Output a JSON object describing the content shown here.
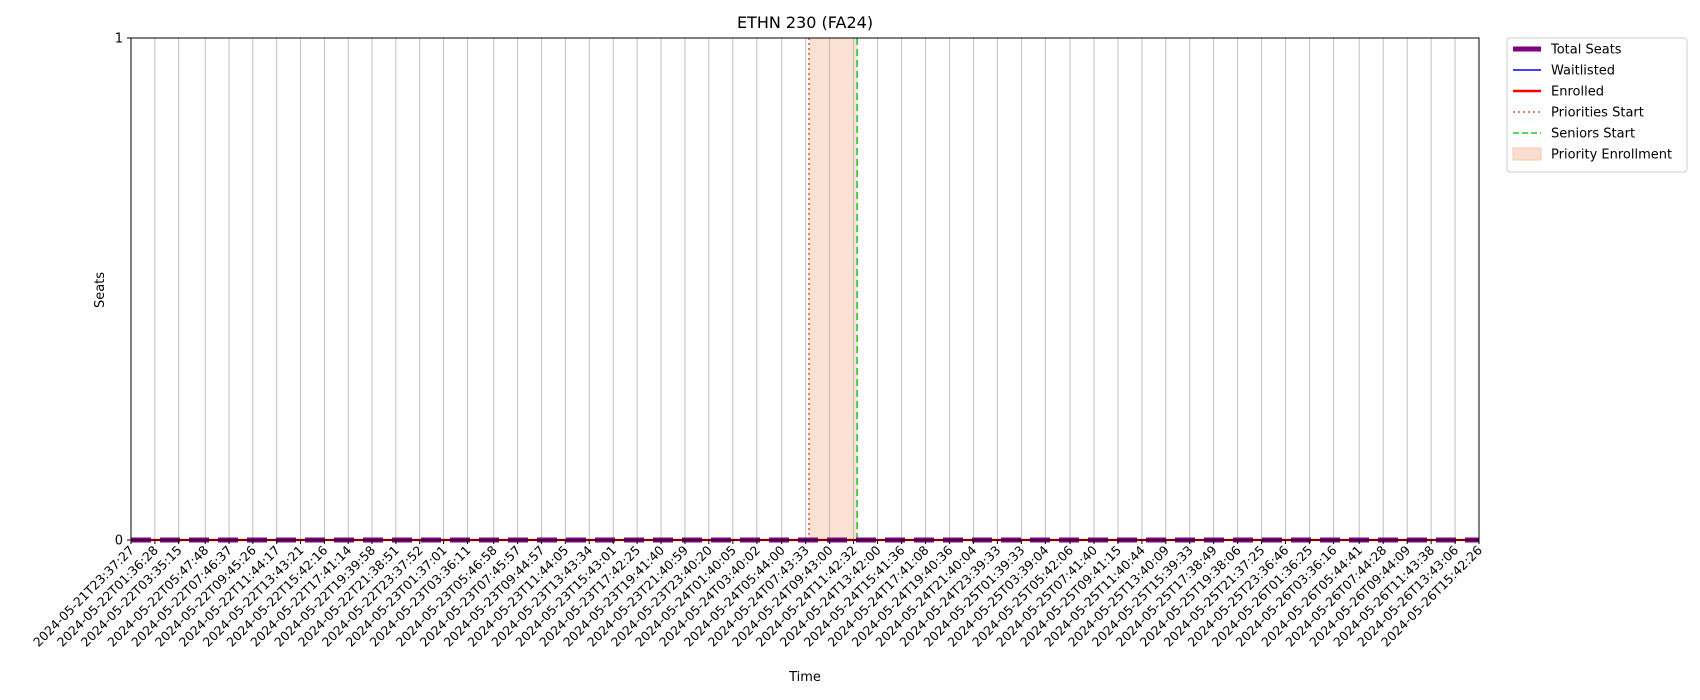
{
  "chart_data": {
    "type": "line",
    "title": "ETHN 230 (FA24)",
    "xlabel": "Time",
    "ylabel": "Seats",
    "ylim": [
      0,
      1
    ],
    "yticks": [
      "0",
      "1"
    ],
    "grid": "vertical",
    "legend_position": "outside-top-right",
    "x": [
      "2024-05-21T23:37:27",
      "2024-05-22T01:36:28",
      "2024-05-22T03:35:15",
      "2024-05-22T05:47:48",
      "2024-05-22T07:46:37",
      "2024-05-22T09:45:26",
      "2024-05-22T11:44:17",
      "2024-05-22T13:43:21",
      "2024-05-22T15:42:16",
      "2024-05-22T17:41:14",
      "2024-05-22T19:39:58",
      "2024-05-22T21:38:51",
      "2024-05-22T23:37:52",
      "2024-05-23T01:37:01",
      "2024-05-23T03:36:11",
      "2024-05-23T05:46:58",
      "2024-05-23T07:45:57",
      "2024-05-23T09:44:57",
      "2024-05-23T11:44:05",
      "2024-05-23T13:43:34",
      "2024-05-23T15:43:01",
      "2024-05-23T17:42:25",
      "2024-05-23T19:41:40",
      "2024-05-23T21:40:59",
      "2024-05-23T23:40:20",
      "2024-05-24T01:40:05",
      "2024-05-24T03:40:02",
      "2024-05-24T05:44:00",
      "2024-05-24T07:43:33",
      "2024-05-24T09:43:00",
      "2024-05-24T11:42:32",
      "2024-05-24T13:42:00",
      "2024-05-24T15:41:36",
      "2024-05-24T17:41:08",
      "2024-05-24T19:40:36",
      "2024-05-24T21:40:04",
      "2024-05-24T23:39:33",
      "2024-05-25T01:39:33",
      "2024-05-25T03:39:04",
      "2024-05-25T05:42:06",
      "2024-05-25T07:41:40",
      "2024-05-25T09:41:15",
      "2024-05-25T11:40:44",
      "2024-05-25T13:40:09",
      "2024-05-25T15:39:33",
      "2024-05-25T17:38:49",
      "2024-05-25T19:38:06",
      "2024-05-25T21:37:25",
      "2024-05-25T23:36:46",
      "2024-05-26T01:36:25",
      "2024-05-26T03:36:16",
      "2024-05-26T05:44:41",
      "2024-05-26T07:44:28",
      "2024-05-26T09:44:09",
      "2024-05-26T11:43:38",
      "2024-05-26T13:43:06",
      "2024-05-26T15:42:26"
    ],
    "series": [
      {
        "name": "Total Seats",
        "color": "#800080",
        "style": "dashed-thick",
        "values": [
          0,
          0,
          0,
          0,
          0,
          0,
          0,
          0,
          0,
          0,
          0,
          0,
          0,
          0,
          0,
          0,
          0,
          0,
          0,
          0,
          0,
          0,
          0,
          0,
          0,
          0,
          0,
          0,
          0,
          0,
          0,
          0,
          0,
          0,
          0,
          0,
          0,
          0,
          0,
          0,
          0,
          0,
          0,
          0,
          0,
          0,
          0,
          0,
          0,
          0,
          0,
          0,
          0,
          0,
          0,
          0,
          0
        ]
      },
      {
        "name": "Waitlisted",
        "color": "#0000ff",
        "style": "solid",
        "values": [
          0,
          0,
          0,
          0,
          0,
          0,
          0,
          0,
          0,
          0,
          0,
          0,
          0,
          0,
          0,
          0,
          0,
          0,
          0,
          0,
          0,
          0,
          0,
          0,
          0,
          0,
          0,
          0,
          0,
          0,
          0,
          0,
          0,
          0,
          0,
          0,
          0,
          0,
          0,
          0,
          0,
          0,
          0,
          0,
          0,
          0,
          0,
          0,
          0,
          0,
          0,
          0,
          0,
          0,
          0,
          0,
          0
        ]
      },
      {
        "name": "Enrolled",
        "color": "#ff0000",
        "style": "solid-thick",
        "values": [
          0,
          0,
          0,
          0,
          0,
          0,
          0,
          0,
          0,
          0,
          0,
          0,
          0,
          0,
          0,
          0,
          0,
          0,
          0,
          0,
          0,
          0,
          0,
          0,
          0,
          0,
          0,
          0,
          0,
          0,
          0,
          0,
          0,
          0,
          0,
          0,
          0,
          0,
          0,
          0,
          0,
          0,
          0,
          0,
          0,
          0,
          0,
          0,
          0,
          0,
          0,
          0,
          0,
          0,
          0,
          0,
          0
        ]
      }
    ],
    "markers": [
      {
        "name": "Priorities Start",
        "color": "#e8542a",
        "style": "dotted",
        "x": "2024-05-24T08:00:00"
      },
      {
        "name": "Seniors Start",
        "color": "#22cc22",
        "style": "dashed",
        "x": "2024-05-24T12:00:00"
      }
    ],
    "spans": [
      {
        "name": "Priority Enrollment",
        "color": "#f5c8b0",
        "x_start": "2024-05-24T08:00:00",
        "x_end": "2024-05-24T12:00:00"
      }
    ],
    "legend": [
      {
        "label": "Total Seats",
        "kind": "thick",
        "color": "#800080"
      },
      {
        "label": "Waitlisted",
        "kind": "line",
        "color": "#0000ff"
      },
      {
        "label": "Enrolled",
        "kind": "line-thick",
        "color": "#ff0000"
      },
      {
        "label": "Priorities Start",
        "kind": "dotted",
        "color": "#e8542a"
      },
      {
        "label": "Seniors Start",
        "kind": "dashed",
        "color": "#22cc22"
      },
      {
        "label": "Priority Enrollment",
        "kind": "patch",
        "color": "#f5c8b0"
      }
    ]
  }
}
